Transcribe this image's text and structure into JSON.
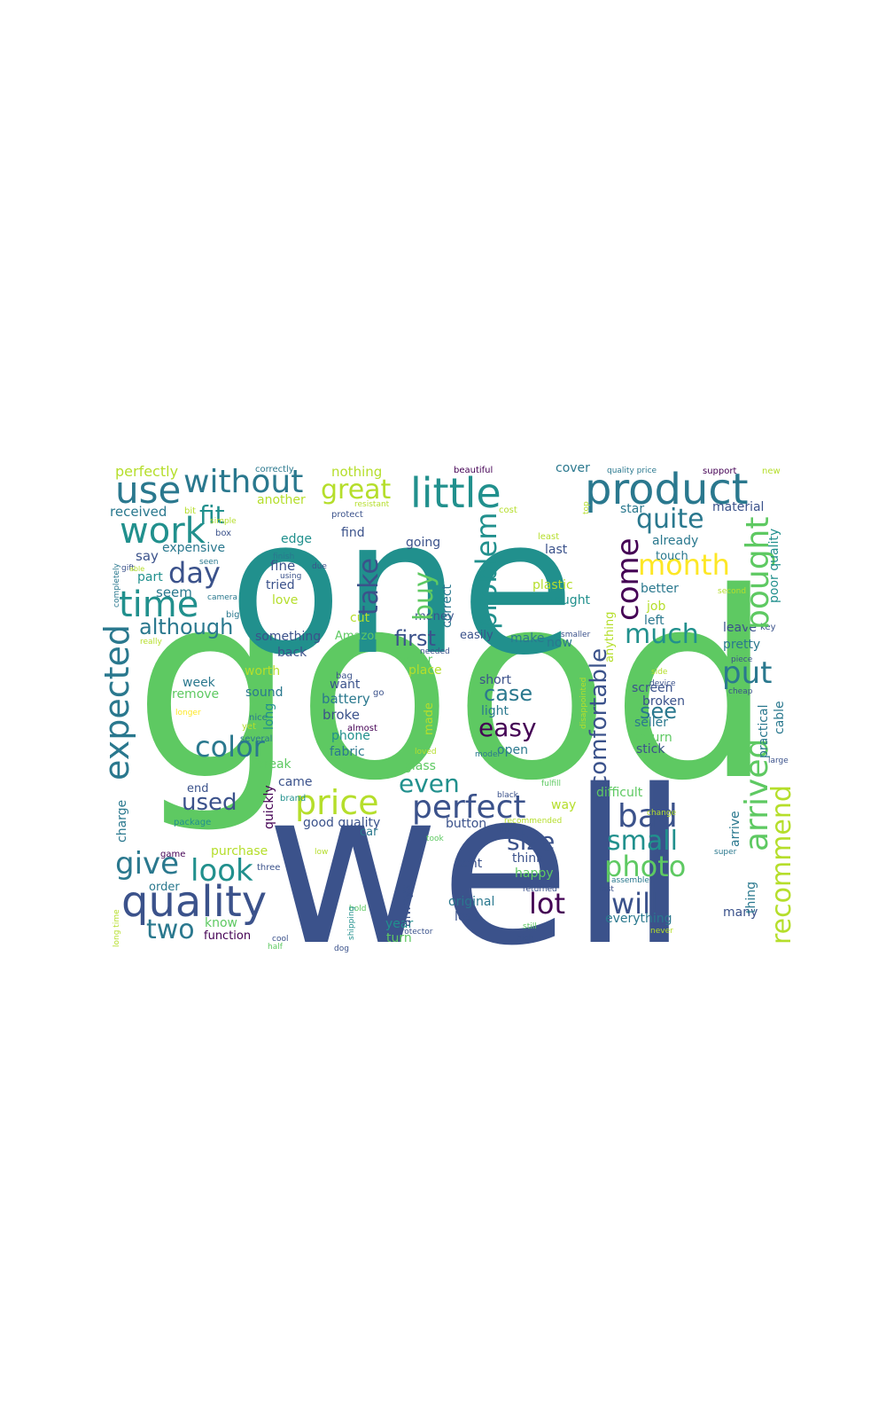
{
  "palette": {
    "background": "#ffffff",
    "teal": "#21908d",
    "green": "#5ec962",
    "navy": "#3b528b",
    "purple": "#440154",
    "yellow": "#fde725",
    "cyan": "#2a788e",
    "lime": "#b5de2b"
  },
  "words": [
    "good",
    "well",
    "one",
    "product",
    "little",
    "use",
    "without",
    "great",
    "work",
    "quality",
    "price",
    "perfect",
    "time",
    "day",
    "fit",
    "month",
    "quite",
    "bought",
    "come",
    "much",
    "put",
    "arrived",
    "recommend",
    "expected",
    "although",
    "problem",
    "buy",
    "take",
    "first",
    "even",
    "color",
    "look",
    "give",
    "two",
    "bad",
    "small",
    "photo",
    "will",
    "lot",
    "size",
    "easy",
    "case",
    "see",
    "comfortable",
    "used",
    "perfectly",
    "received",
    "say",
    "part",
    "seem",
    "expensive",
    "tried",
    "fine",
    "love",
    "edge",
    "going",
    "plastic",
    "thought",
    "cover",
    "star",
    "material",
    "already",
    "touch",
    "better",
    "leave",
    "pretty",
    "nothing",
    "another",
    "find",
    "correctly",
    "beautiful",
    "support",
    "new",
    "quality price",
    "protect",
    "cost",
    "top",
    "last",
    "least",
    "poor quality",
    "key",
    "job",
    "left",
    "smaller",
    "now",
    "make",
    "easily",
    "something",
    "Amazon",
    "back",
    "cut",
    "money",
    "correct",
    "water",
    "place",
    "needed",
    "worth",
    "week",
    "remove",
    "sound",
    "battery",
    "broke",
    "want",
    "phone",
    "fabric",
    "light",
    "short",
    "open",
    "screen",
    "broken",
    "seller",
    "return",
    "stick",
    "practical",
    "cable",
    "cheap",
    "came",
    "break",
    "end",
    "charge",
    "quickly",
    "good quality",
    "car",
    "button",
    "difficult",
    "way",
    "recommended",
    "glass",
    "fulfill",
    "black",
    "loose",
    "arrive",
    "purchase",
    "think",
    "happy",
    "sent",
    "original",
    "less",
    "always",
    "year",
    "turn",
    "order",
    "function",
    "know",
    "everything",
    "many",
    "thing",
    "super",
    "returned",
    "fast",
    "assemble",
    "high",
    "never",
    "still",
    "resistant",
    "nice",
    "almost",
    "device",
    "side",
    "piece",
    "mobile",
    "bag",
    "hold",
    "protector",
    "long",
    "several",
    "yet",
    "loved",
    "model",
    "brand",
    "package",
    "game",
    "low",
    "three",
    "change",
    "took",
    "long time",
    "shipping",
    "dog",
    "cool",
    "half",
    "disappointed",
    "anything",
    "made",
    "second",
    "large",
    "completely",
    "gift",
    "able",
    "really",
    "camera",
    "big",
    "seen",
    "due",
    "using",
    "finish",
    "simple",
    "box",
    "bit",
    "longer",
    "go",
    "really"
  ]
}
